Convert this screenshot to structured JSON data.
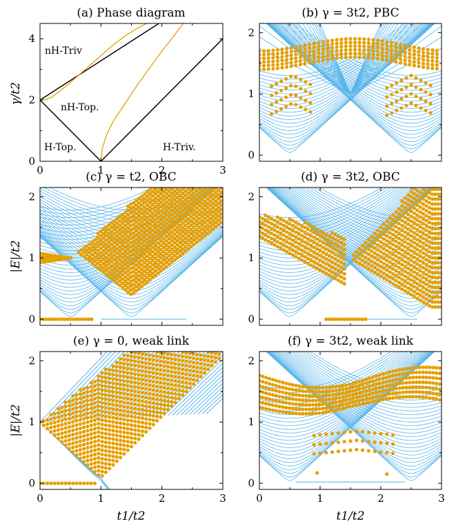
{
  "colors": {
    "blue": "#56b4e9",
    "orange": "#e69f00",
    "black": "#000000"
  },
  "chart_data": [
    {
      "id": "a",
      "type": "line",
      "title": "(a) Phase diagram",
      "xlabel": "t1/t2",
      "ylabel": "γ/t2",
      "xlim": [
        0,
        3
      ],
      "ylim": [
        0,
        4.5
      ],
      "xticks": [
        "0",
        "1",
        "2",
        "3"
      ],
      "yticks": [
        "0",
        "2",
        "4"
      ],
      "region_labels": [
        "nH-Triv",
        "nH-Top.",
        "H-Top.",
        "H-Triv."
      ],
      "series": [
        {
          "color": "black",
          "x": [
            0,
            1.95
          ],
          "y": [
            2,
            4.5
          ]
        },
        {
          "color": "black",
          "x": [
            0,
            1
          ],
          "y": [
            2,
            0
          ]
        },
        {
          "color": "black",
          "x": [
            1,
            3
          ],
          "y": [
            0,
            4
          ]
        },
        {
          "color": "orange",
          "x": [
            0,
            0.1,
            0.2,
            0.4,
            0.6,
            0.8,
            1.0,
            1.2,
            1.4,
            1.6,
            1.75
          ],
          "y": [
            2,
            2.02,
            2.1,
            2.4,
            2.75,
            3.1,
            3.45,
            3.8,
            4.1,
            4.35,
            4.5
          ]
        },
        {
          "color": "orange",
          "x": [
            1,
            1.02,
            1.05,
            1.1,
            1.2,
            1.4,
            1.6,
            1.8,
            2.0,
            2.2,
            2.35
          ],
          "y": [
            0,
            0.4,
            0.6,
            0.9,
            1.3,
            1.9,
            2.5,
            3.05,
            3.6,
            4.1,
            4.5
          ]
        }
      ]
    },
    {
      "id": "b",
      "type": "line",
      "title": "(b) γ = 3t2, PBC",
      "xlabel": "",
      "ylabel": "",
      "xlim": [
        0,
        3
      ],
      "ylim": [
        -0.1,
        2.15
      ],
      "yticks": [
        "0",
        "1",
        "2"
      ]
    },
    {
      "id": "c",
      "type": "line",
      "title": "(c) γ = t2, OBC",
      "xlabel": "",
      "ylabel": "|E|/t2",
      "xlim": [
        0,
        3
      ],
      "ylim": [
        -0.1,
        2.15
      ],
      "yticks": [
        "0",
        "1",
        "2"
      ]
    },
    {
      "id": "d",
      "type": "line",
      "title": "(d) γ = 3t2, OBC",
      "xlabel": "",
      "ylabel": "",
      "xlim": [
        0,
        3
      ],
      "ylim": [
        -0.1,
        2.15
      ],
      "yticks": [
        "0",
        "1",
        "2"
      ]
    },
    {
      "id": "e",
      "type": "line",
      "title": "(e) γ = 0, weak link",
      "xlabel": "t1/t2",
      "ylabel": "|E|/t2",
      "xlim": [
        0,
        3
      ],
      "ylim": [
        -0.1,
        2.15
      ],
      "xticks": [
        "0",
        "1",
        "2",
        "3"
      ],
      "yticks": [
        "0",
        "1",
        "2"
      ]
    },
    {
      "id": "f",
      "type": "line",
      "title": "(f) γ = 3t2, weak link",
      "xlabel": "t1/t2",
      "ylabel": "",
      "xlim": [
        0,
        3
      ],
      "ylim": [
        -0.1,
        2.15
      ],
      "xticks": [
        "0",
        "1",
        "2",
        "3"
      ],
      "yticks": [
        "0",
        "1",
        "2"
      ]
    }
  ]
}
